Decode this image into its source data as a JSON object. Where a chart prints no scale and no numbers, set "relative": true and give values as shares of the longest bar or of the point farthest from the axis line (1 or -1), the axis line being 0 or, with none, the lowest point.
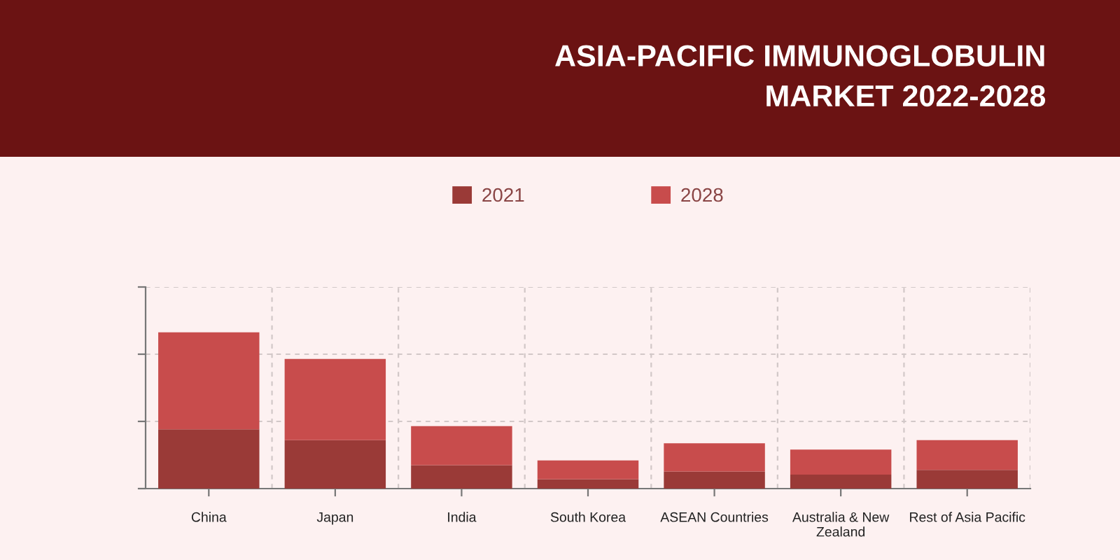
{
  "chart_data": {
    "type": "bar",
    "title": "ASIA-PACIFIC IMMUNOGLOBULIN\nMARKET 2022-2028",
    "categories": [
      "China",
      "Japan",
      "India",
      "South Korea",
      "ASEAN Countries",
      "Australia & New\nZealand",
      "Rest of Asia Pacific"
    ],
    "series": [
      {
        "name": "2021",
        "color": "#9a3a37",
        "values": [
          0.38,
          0.31,
          0.15,
          0.06,
          0.11,
          0.09,
          0.12
        ]
      },
      {
        "name": "2028",
        "color": "#c84c4c",
        "values": [
          0.62,
          0.52,
          0.25,
          0.12,
          0.18,
          0.16,
          0.19
        ]
      }
    ],
    "stacked": true,
    "relative": true,
    "legend": "top",
    "grid": true
  }
}
